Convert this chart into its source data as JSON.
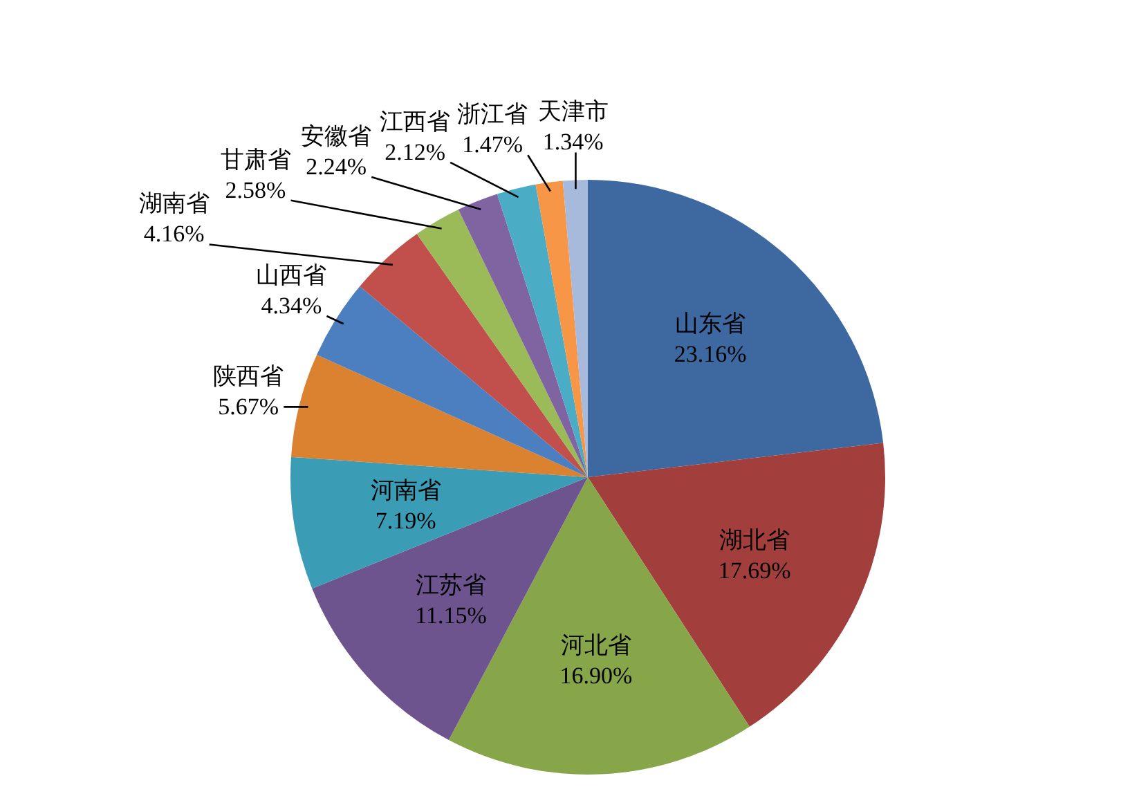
{
  "chart_data": {
    "type": "pie",
    "categories": [
      "山东省",
      "湖北省",
      "河北省",
      "江苏省",
      "河南省",
      "陕西省",
      "山西省",
      "湖南省",
      "甘肃省",
      "安徽省",
      "江西省",
      "浙江省",
      "天津市"
    ],
    "values": [
      23.16,
      17.69,
      16.9,
      11.15,
      7.19,
      5.67,
      4.34,
      4.16,
      2.58,
      2.24,
      2.12,
      1.47,
      1.34
    ],
    "value_labels": [
      "23.16%",
      "17.69%",
      "16.90%",
      "11.15%",
      "7.19%",
      "5.67%",
      "4.34%",
      "4.16%",
      "2.58%",
      "2.24%",
      "2.12%",
      "1.47%",
      "1.34%"
    ],
    "colors": [
      "#3d69a0",
      "#a23f3c",
      "#87a64a",
      "#6d548e",
      "#3b9cb6",
      "#da822f",
      "#4c7fc0",
      "#c14f4c",
      "#9bbb59",
      "#8064a2",
      "#4bacc6",
      "#f79646",
      "#a8badb"
    ]
  }
}
